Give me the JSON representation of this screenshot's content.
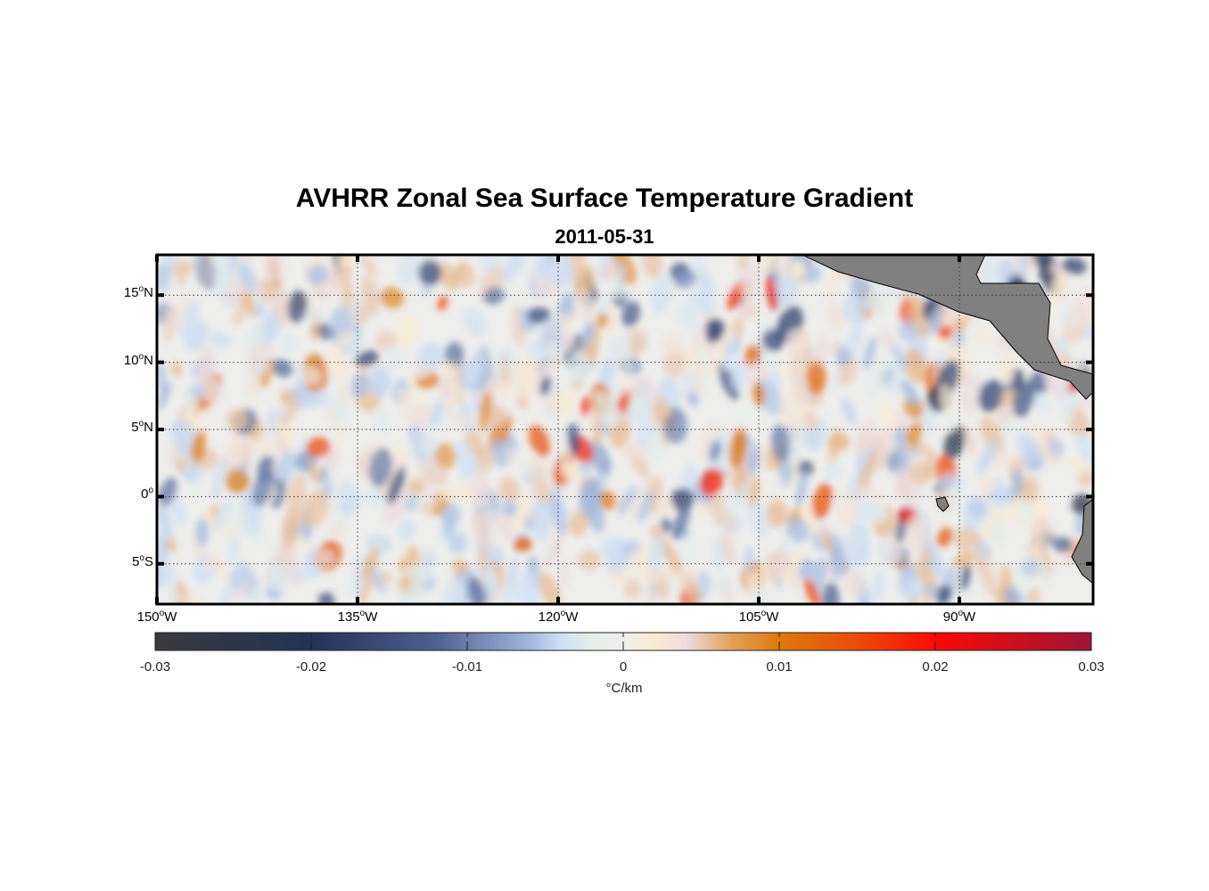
{
  "title": "AVHRR Zonal Sea Surface Temperature Gradient",
  "subtitle": "2011-05-31",
  "map": {
    "lon_range": [
      -150,
      -80
    ],
    "lat_range": [
      -8,
      18
    ],
    "lat_labels": [
      {
        "value": 15,
        "deg": "15",
        "hemi": "N"
      },
      {
        "value": 10,
        "deg": "10",
        "hemi": "N"
      },
      {
        "value": 5,
        "deg": "5",
        "hemi": "N"
      },
      {
        "value": 0,
        "deg": "0",
        "hemi": ""
      },
      {
        "value": -5,
        "deg": "5",
        "hemi": "S"
      }
    ],
    "lon_labels": [
      {
        "value": -150,
        "deg": "150",
        "hemi": "W"
      },
      {
        "value": -135,
        "deg": "135",
        "hemi": "W"
      },
      {
        "value": -120,
        "deg": "120",
        "hemi": "W"
      },
      {
        "value": -105,
        "deg": "105",
        "hemi": "W"
      },
      {
        "value": -90,
        "deg": "90",
        "hemi": "W"
      }
    ],
    "land_color": "#808080"
  },
  "colorbar": {
    "range": [
      -0.03,
      0.03
    ],
    "ticks": [
      "-0.03",
      "-0.02",
      "-0.01",
      "0",
      "0.01",
      "0.02",
      "0.03"
    ],
    "unit": "°C/km",
    "stops": [
      {
        "v": -0.03,
        "c": "#3a3a3c"
      },
      {
        "v": -0.02,
        "c": "#233257"
      },
      {
        "v": -0.012,
        "c": "#4d618e"
      },
      {
        "v": -0.006,
        "c": "#9fb6dc"
      },
      {
        "v": -0.004,
        "c": "#cfe0f5"
      },
      {
        "v": -0.002,
        "c": "#e6eee8"
      },
      {
        "v": 0,
        "c": "#eeeeec"
      },
      {
        "v": 0.002,
        "c": "#f8ebd0"
      },
      {
        "v": 0.004,
        "c": "#ebdde0"
      },
      {
        "v": 0.007,
        "c": "#e3a054"
      },
      {
        "v": 0.01,
        "c": "#dd7a0c"
      },
      {
        "v": 0.015,
        "c": "#ec4b08"
      },
      {
        "v": 0.02,
        "c": "#fb0a05"
      },
      {
        "v": 0.03,
        "c": "#9e1434"
      }
    ]
  }
}
